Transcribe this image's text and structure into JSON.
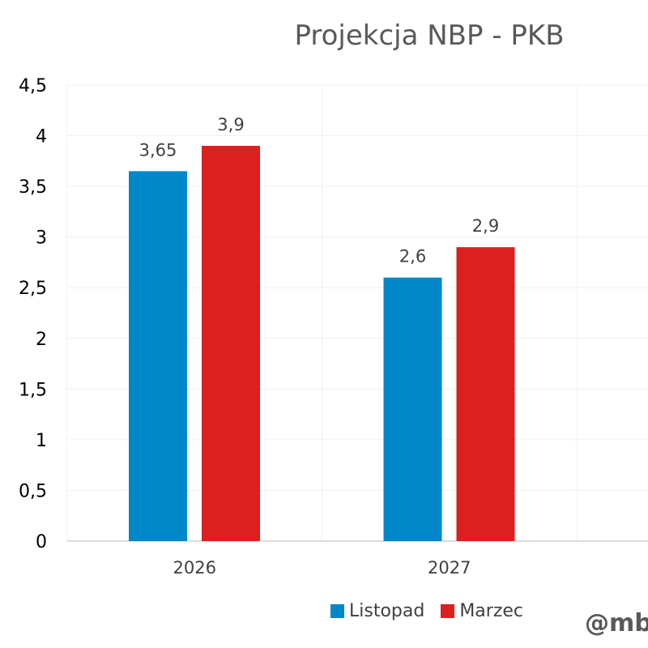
{
  "chart_data": {
    "type": "bar",
    "title": "Projekcja NBP - PKB",
    "categories": [
      "2026",
      "2027"
    ],
    "series": [
      {
        "name": "Listopad",
        "values": [
          3.65,
          2.6
        ],
        "labels": [
          "3,65",
          "2,6"
        ],
        "color": "#0087C9"
      },
      {
        "name": "Marzec",
        "values": [
          3.9,
          2.9
        ],
        "labels": [
          "3,9",
          "2,9"
        ],
        "color": "#DC1F1F"
      }
    ],
    "ylim": [
      0,
      4.5
    ],
    "yticks": [
      "0",
      "0,5",
      "1",
      "1,5",
      "2",
      "2,5",
      "3",
      "3,5",
      "4",
      "4,5"
    ],
    "grid": true,
    "legend": "bottom"
  },
  "watermark": "@mb"
}
